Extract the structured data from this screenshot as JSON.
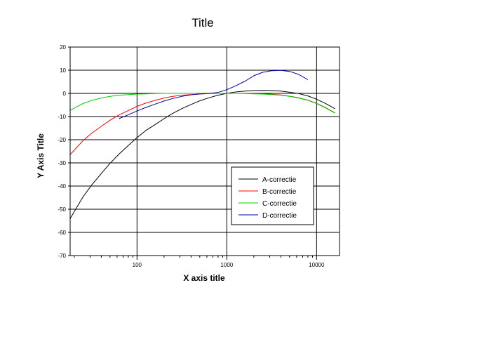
{
  "chart_data": {
    "type": "line",
    "title": "Title",
    "xlabel": "X axis title",
    "ylabel": "Y Axis Title",
    "xscale": "log",
    "xlim": [
      18,
      18000
    ],
    "ylim": [
      -70,
      20
    ],
    "xticks": [
      100,
      1000,
      10000
    ],
    "xtick_labels": [
      "100",
      "1000",
      "10000"
    ],
    "yticks": [
      -70,
      -60,
      -50,
      -40,
      -30,
      -20,
      -10,
      0,
      10,
      20
    ],
    "ytick_labels": [
      "-70",
      "-60",
      "-50",
      "-40",
      "-30",
      "-20",
      "-10",
      "0",
      "10",
      "20"
    ],
    "grid": true,
    "legend_position": "lower-right",
    "series": [
      {
        "name": "A-correctie",
        "color": "#000000",
        "x": [
          18,
          25,
          31.5,
          40,
          50,
          63,
          80,
          100,
          125,
          160,
          200,
          250,
          315,
          400,
          500,
          630,
          800,
          1000,
          1250,
          1600,
          2000,
          2500,
          3150,
          4000,
          5000,
          6300,
          8000,
          10000,
          12500,
          16000
        ],
        "y": [
          -54,
          -44.7,
          -39.4,
          -34.6,
          -30.2,
          -26.2,
          -22.5,
          -19.1,
          -16.1,
          -13.4,
          -10.9,
          -8.6,
          -6.6,
          -4.8,
          -3.2,
          -1.9,
          -0.8,
          0.0,
          0.6,
          1.0,
          1.2,
          1.3,
          1.2,
          1.0,
          0.5,
          -0.1,
          -1.1,
          -2.5,
          -4.3,
          -6.6
        ]
      },
      {
        "name": "B-correctie",
        "color": "#ff0000",
        "x": [
          18,
          25,
          31.5,
          40,
          50,
          63,
          80,
          100,
          125,
          160,
          200,
          250,
          315,
          400,
          500,
          630,
          800,
          1000,
          1250,
          1600,
          2000,
          2500,
          3150,
          4000,
          5000,
          6300,
          8000,
          10000,
          12500,
          16000
        ],
        "y": [
          -26.4,
          -20.4,
          -17.1,
          -14.2,
          -11.6,
          -9.3,
          -7.4,
          -5.6,
          -4.2,
          -3.0,
          -2.0,
          -1.3,
          -0.8,
          -0.5,
          -0.3,
          -0.1,
          0.0,
          0.0,
          0.0,
          0.0,
          -0.1,
          -0.2,
          -0.4,
          -0.7,
          -1.2,
          -1.9,
          -2.9,
          -4.3,
          -6.1,
          -8.4
        ]
      },
      {
        "name": "C-correctie",
        "color": "#00cc00",
        "x": [
          18,
          25,
          31.5,
          40,
          50,
          63,
          80,
          100,
          125,
          160,
          200,
          250,
          315,
          400,
          500,
          630,
          800,
          1000,
          1250,
          1600,
          2000,
          2500,
          3150,
          4000,
          5000,
          6300,
          8000,
          10000,
          12500,
          16000
        ],
        "y": [
          -7.3,
          -4.4,
          -3.0,
          -2.0,
          -1.3,
          -0.8,
          -0.5,
          -0.3,
          -0.2,
          -0.1,
          0.0,
          0.0,
          0.0,
          0.0,
          0.0,
          0.0,
          0.0,
          0.0,
          0.0,
          -0.1,
          -0.2,
          -0.3,
          -0.5,
          -0.8,
          -1.3,
          -2.0,
          -3.0,
          -4.4,
          -6.2,
          -8.5
        ]
      },
      {
        "name": "D-correctie",
        "color": "#0000aa",
        "x": [
          63,
          80,
          100,
          125,
          160,
          200,
          250,
          315,
          400,
          500,
          630,
          800,
          1000,
          1250,
          1600,
          2000,
          2500,
          3150,
          4000,
          5000,
          6300,
          8000
        ],
        "y": [
          -10.9,
          -9.2,
          -7.6,
          -6.1,
          -4.6,
          -3.3,
          -2.2,
          -1.3,
          -0.6,
          -0.2,
          0.0,
          0.4,
          1.6,
          3.2,
          5.3,
          7.6,
          9.1,
          9.8,
          9.9,
          9.5,
          8.2,
          5.9
        ]
      }
    ]
  }
}
